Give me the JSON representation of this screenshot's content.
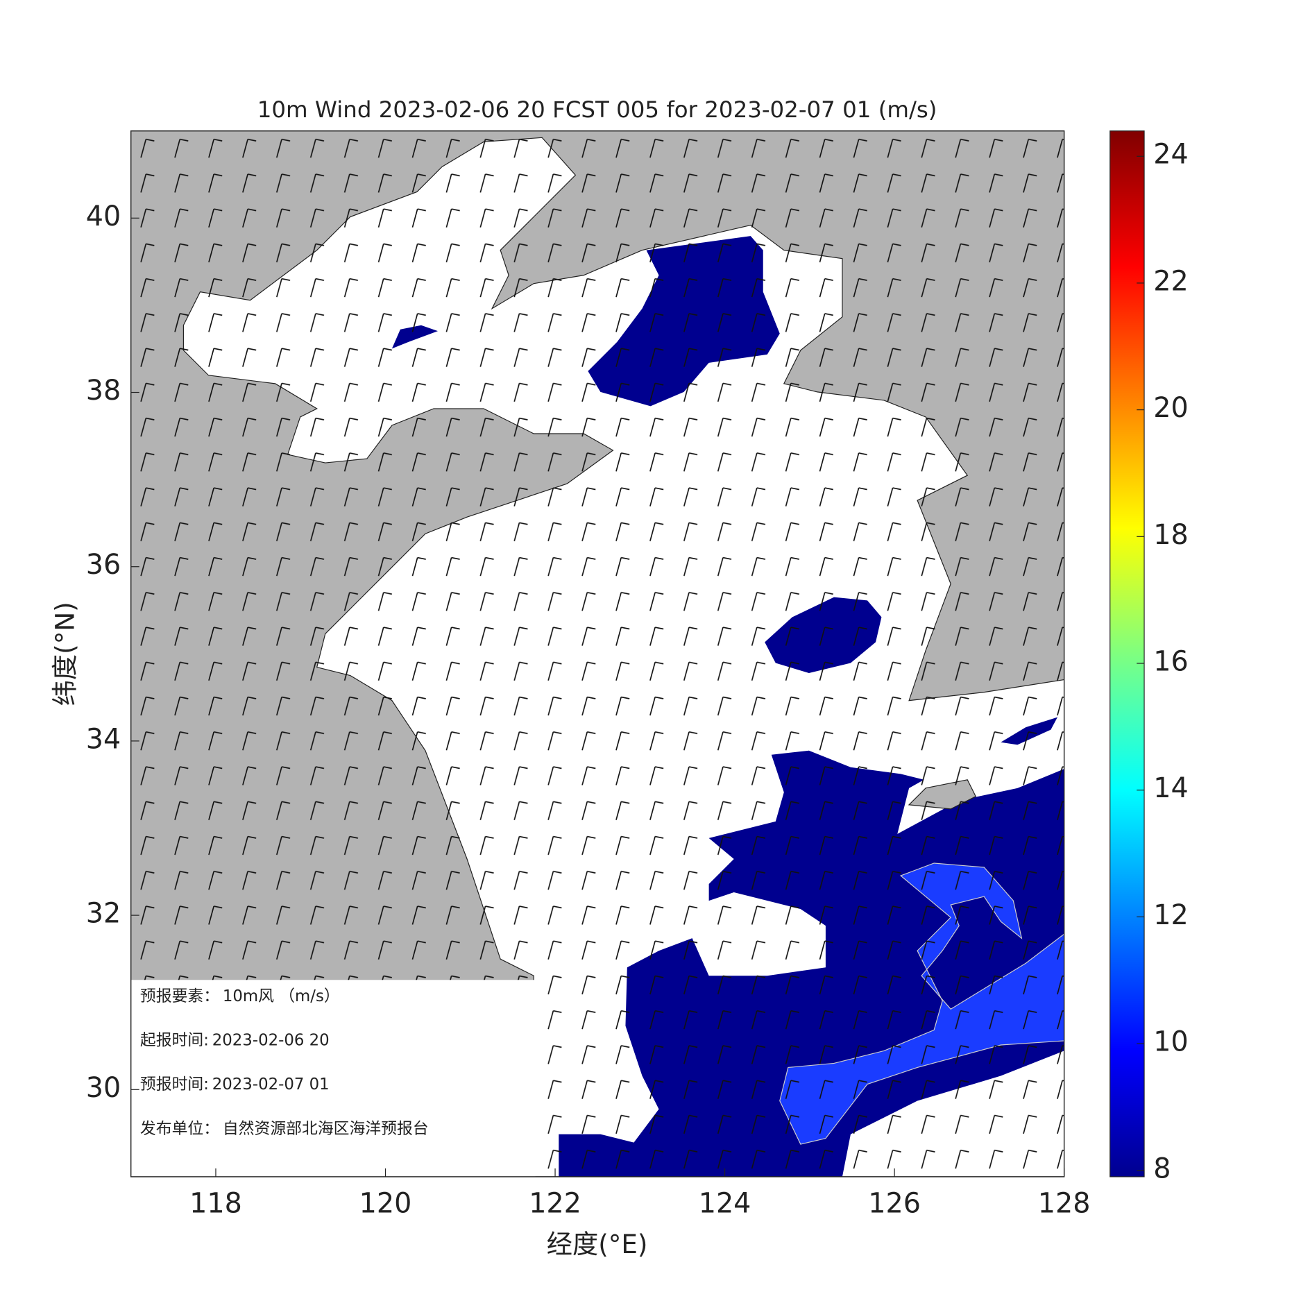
{
  "chart_data": {
    "type": "map",
    "title": "10m Wind 2023-02-06 20 FCST 005 for 2023-02-07 01 (m/s)",
    "xlabel": "经度(°E)",
    "ylabel": "纬度(°N)",
    "xlim": [
      117,
      128
    ],
    "ylim": [
      29,
      41
    ],
    "xticks": [
      118,
      120,
      122,
      124,
      126,
      128
    ],
    "yticks": [
      30,
      32,
      34,
      36,
      38,
      40
    ],
    "colorbar": {
      "clim": [
        7.9,
        24.4
      ],
      "ticks": [
        8,
        10,
        12,
        14,
        16,
        18,
        20,
        22,
        24
      ]
    },
    "info": [
      {
        "label": "预报要素：",
        "value": "10m风 （m/s）"
      },
      {
        "label": "起报时间:",
        "value": "2023-02-06 20"
      },
      {
        "label": "预报时间:",
        "value": "2023-02-07 01"
      },
      {
        "label": "发布单位：",
        "value": "自然资源部北海区海洋预报台"
      }
    ]
  }
}
